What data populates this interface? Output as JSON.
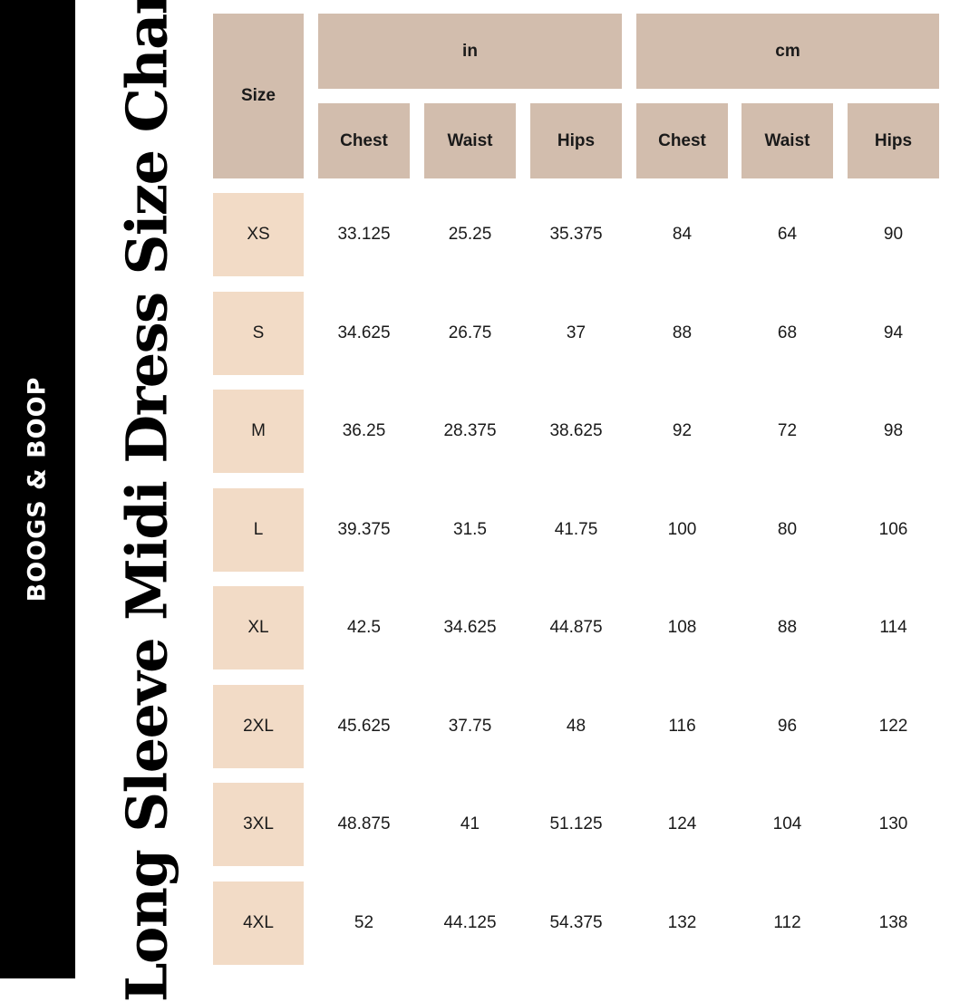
{
  "brand": {
    "name": "BOOGS & BOOP"
  },
  "title": "Long Sleeve Midi Dress Size Chart",
  "colors": {
    "header_bg": "#d2bdad",
    "size_bg": "#f2dbc6",
    "sidebar_bg": "#000000"
  },
  "table": {
    "size_header": "Size",
    "groups": [
      "in",
      "cm"
    ],
    "columns": [
      "Chest",
      "Waist",
      "Hips",
      "Chest",
      "Waist",
      "Hips"
    ],
    "rows": [
      {
        "size": "XS",
        "values": [
          "33.125",
          "25.25",
          "35.375",
          "84",
          "64",
          "90"
        ]
      },
      {
        "size": "S",
        "values": [
          "34.625",
          "26.75",
          "37",
          "88",
          "68",
          "94"
        ]
      },
      {
        "size": "M",
        "values": [
          "36.25",
          "28.375",
          "38.625",
          "92",
          "72",
          "98"
        ]
      },
      {
        "size": "L",
        "values": [
          "39.375",
          "31.5",
          "41.75",
          "100",
          "80",
          "106"
        ]
      },
      {
        "size": "XL",
        "values": [
          "42.5",
          "34.625",
          "44.875",
          "108",
          "88",
          "114"
        ]
      },
      {
        "size": "2XL",
        "values": [
          "45.625",
          "37.75",
          "48",
          "116",
          "96",
          "122"
        ]
      },
      {
        "size": "3XL",
        "values": [
          "48.875",
          "41",
          "51.125",
          "124",
          "104",
          "130"
        ]
      },
      {
        "size": "4XL",
        "values": [
          "52",
          "44.125",
          "54.375",
          "132",
          "112",
          "138"
        ]
      }
    ]
  }
}
